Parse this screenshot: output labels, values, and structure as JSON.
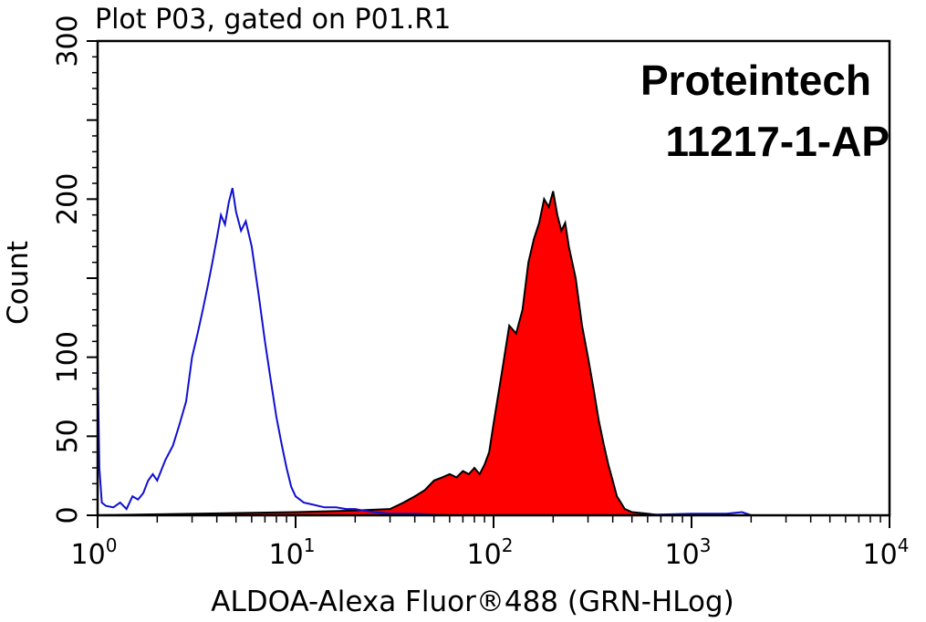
{
  "chart_data": {
    "type": "histogram",
    "title": "Plot P03, gated on P01.R1",
    "xlabel": "ALDOA-Alexa Fluor®488 (GRN-HLog)",
    "ylabel": "Count",
    "x_scale": "log",
    "xlim": [
      1,
      10000
    ],
    "ylim": [
      0,
      300
    ],
    "x_ticks": [
      {
        "base": "10",
        "exp": "0"
      },
      {
        "base": "10",
        "exp": "1"
      },
      {
        "base": "10",
        "exp": "2"
      },
      {
        "base": "10",
        "exp": "3"
      },
      {
        "base": "10",
        "exp": "4"
      }
    ],
    "y_ticks": [
      "0",
      "50",
      "100",
      "200",
      "300"
    ],
    "y_tick_values": [
      0,
      50,
      100,
      200,
      300
    ],
    "annotations": [
      "Proteintech",
      "11217-1-AP"
    ],
    "series": [
      {
        "color": "#1010d0",
        "fill": "none",
        "points": [
          [
            1.0,
            100
          ],
          [
            1.02,
            30
          ],
          [
            1.05,
            8
          ],
          [
            1.1,
            6
          ],
          [
            1.2,
            5
          ],
          [
            1.3,
            8
          ],
          [
            1.4,
            4
          ],
          [
            1.5,
            12
          ],
          [
            1.6,
            10
          ],
          [
            1.7,
            14
          ],
          [
            1.8,
            22
          ],
          [
            1.9,
            26
          ],
          [
            2.0,
            22
          ],
          [
            2.2,
            35
          ],
          [
            2.4,
            44
          ],
          [
            2.6,
            58
          ],
          [
            2.8,
            72
          ],
          [
            3.0,
            100
          ],
          [
            3.2,
            115
          ],
          [
            3.4,
            130
          ],
          [
            3.6,
            145
          ],
          [
            3.8,
            160
          ],
          [
            4.0,
            175
          ],
          [
            4.2,
            190
          ],
          [
            4.4,
            184
          ],
          [
            4.6,
            198
          ],
          [
            4.8,
            207
          ],
          [
            5.0,
            192
          ],
          [
            5.3,
            180
          ],
          [
            5.6,
            186
          ],
          [
            6.0,
            170
          ],
          [
            6.5,
            140
          ],
          [
            7.0,
            110
          ],
          [
            7.5,
            85
          ],
          [
            8.0,
            62
          ],
          [
            8.5,
            45
          ],
          [
            9.0,
            30
          ],
          [
            9.5,
            18
          ],
          [
            10,
            12
          ],
          [
            11,
            8
          ],
          [
            12,
            7
          ],
          [
            14,
            5
          ],
          [
            16,
            5
          ],
          [
            18,
            4
          ],
          [
            20,
            4
          ],
          [
            22,
            3
          ],
          [
            25,
            2
          ],
          [
            30,
            1
          ],
          [
            40,
            1
          ],
          [
            60,
            0
          ],
          [
            100,
            0
          ],
          [
            500,
            0
          ],
          [
            1000,
            1
          ],
          [
            1500,
            1
          ],
          [
            1800,
            2
          ],
          [
            2000,
            0
          ],
          [
            10000,
            0
          ]
        ]
      },
      {
        "color": "#ff0000",
        "fill": "#ff0000",
        "stroke": "#000000",
        "points": [
          [
            1.0,
            0
          ],
          [
            10,
            2
          ],
          [
            20,
            3
          ],
          [
            30,
            4
          ],
          [
            35,
            8
          ],
          [
            40,
            12
          ],
          [
            45,
            16
          ],
          [
            50,
            22
          ],
          [
            55,
            24
          ],
          [
            60,
            26
          ],
          [
            65,
            24
          ],
          [
            70,
            28
          ],
          [
            75,
            26
          ],
          [
            80,
            30
          ],
          [
            85,
            26
          ],
          [
            90,
            32
          ],
          [
            95,
            40
          ],
          [
            100,
            58
          ],
          [
            110,
            90
          ],
          [
            120,
            120
          ],
          [
            130,
            115
          ],
          [
            140,
            130
          ],
          [
            150,
            160
          ],
          [
            160,
            175
          ],
          [
            170,
            185
          ],
          [
            180,
            200
          ],
          [
            190,
            195
          ],
          [
            200,
            205
          ],
          [
            210,
            190
          ],
          [
            220,
            180
          ],
          [
            230,
            185
          ],
          [
            240,
            170
          ],
          [
            260,
            150
          ],
          [
            280,
            120
          ],
          [
            300,
            100
          ],
          [
            320,
            80
          ],
          [
            340,
            60
          ],
          [
            360,
            45
          ],
          [
            380,
            32
          ],
          [
            400,
            22
          ],
          [
            420,
            12
          ],
          [
            440,
            8
          ],
          [
            460,
            4
          ],
          [
            500,
            2
          ],
          [
            600,
            1
          ],
          [
            700,
            0
          ],
          [
            10000,
            0
          ]
        ]
      }
    ]
  }
}
